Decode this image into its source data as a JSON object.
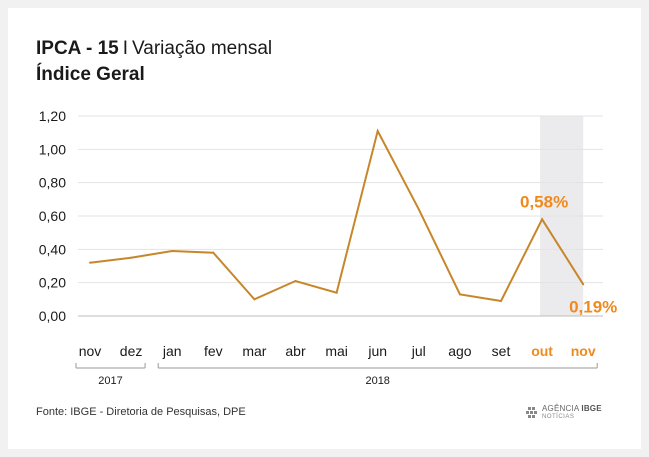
{
  "header": {
    "title_bold": "IPCA - 15",
    "title_sep": "I",
    "title_rest": "Variação mensal",
    "subtitle": "Índice Geral"
  },
  "chart_data": {
    "type": "line",
    "title": "IPCA - 15 I Variação mensal",
    "subtitle": "Índice Geral",
    "categories": [
      "nov",
      "dez",
      "jan",
      "fev",
      "mar",
      "abr",
      "mai",
      "jun",
      "jul",
      "ago",
      "set",
      "out",
      "nov"
    ],
    "values": [
      0.32,
      0.35,
      0.39,
      0.38,
      0.1,
      0.21,
      0.14,
      1.11,
      0.64,
      0.13,
      0.09,
      0.58,
      0.19
    ],
    "y_ticks": [
      "0,00",
      "0,20",
      "0,40",
      "0,60",
      "0,80",
      "1,00",
      "1,20"
    ],
    "ylim": [
      0,
      1.2
    ],
    "year_groups": [
      {
        "label": "2017",
        "from": 0,
        "to": 1
      },
      {
        "label": "2018",
        "from": 2,
        "to": 12
      }
    ],
    "highlight_indices": [
      11,
      12
    ],
    "annotations": [
      {
        "index": 11,
        "text": "0,58%"
      },
      {
        "index": 12,
        "text": "0,19%"
      }
    ],
    "grid": true,
    "line_color": "#c8862a",
    "highlight_color": "#ee8a1e",
    "shade_color": "#ebebed"
  },
  "footer": {
    "source": "Fonte: IBGE - Diretoria de Pesquisas, DPE",
    "logo_main": "AGÊNCIA",
    "logo_brand": "IBGE",
    "logo_sub": "NOTÍCIAS"
  }
}
